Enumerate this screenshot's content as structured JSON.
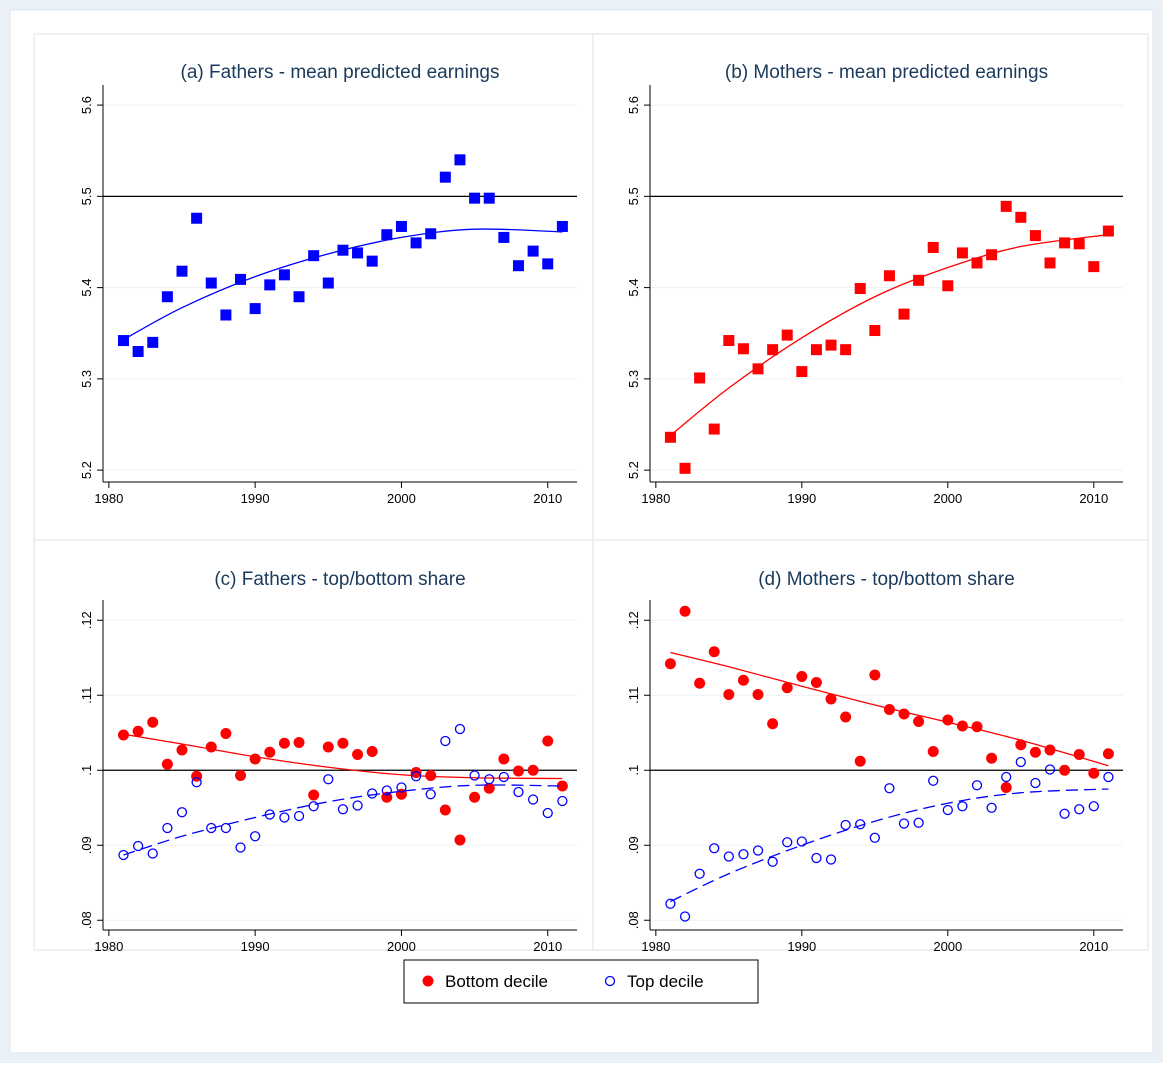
{
  "chart_data": [
    {
      "type": "scatter",
      "title": "(a) Fathers - mean predicted earnings",
      "x": [
        1981,
        1982,
        1983,
        1984,
        1985,
        1986,
        1987,
        1988,
        1989,
        1990,
        1991,
        1992,
        1993,
        1994,
        1995,
        1996,
        1997,
        1998,
        1999,
        2000,
        2001,
        2002,
        2003,
        2004,
        2005,
        2006,
        2007,
        2008,
        2009,
        2010,
        2011
      ],
      "series": [
        {
          "color": "#0000ff",
          "marker": "square",
          "values": [
            5.342,
            5.33,
            5.34,
            5.39,
            5.418,
            5.476,
            5.405,
            5.37,
            5.409,
            5.377,
            5.403,
            5.414,
            5.39,
            5.435,
            5.405,
            5.441,
            5.438,
            5.429,
            5.458,
            5.467,
            5.449,
            5.459,
            5.521,
            5.54,
            5.498,
            5.498,
            5.455,
            5.424,
            5.44,
            5.426,
            5.467
          ],
          "fit": {
            "x": [
              1981,
              1985,
              1990,
              1995,
              2000,
              2005,
              2011
            ],
            "values": [
              5.343,
              5.378,
              5.412,
              5.437,
              5.455,
              5.464,
              5.461
            ],
            "line_style": "solid"
          }
        }
      ],
      "reference_line": 5.5,
      "xlim": [
        1979.6,
        2012
      ],
      "xticks": [
        1980,
        1990,
        2000,
        2010
      ],
      "ylim": [
        5.187,
        5.622
      ],
      "yticks": [
        5.2,
        5.3,
        5.4,
        5.5,
        5.6
      ],
      "grid": true
    },
    {
      "type": "scatter",
      "title": "(b) Mothers - mean predicted earnings",
      "x": [
        1981,
        1982,
        1983,
        1984,
        1985,
        1986,
        1987,
        1988,
        1989,
        1990,
        1991,
        1992,
        1993,
        1994,
        1995,
        1996,
        1997,
        1998,
        1999,
        2000,
        2001,
        2002,
        2003,
        2004,
        2005,
        2006,
        2007,
        2008,
        2009,
        2010,
        2011
      ],
      "series": [
        {
          "color": "#ff0000",
          "marker": "square",
          "values": [
            5.236,
            5.202,
            5.301,
            5.245,
            5.342,
            5.333,
            5.311,
            5.332,
            5.348,
            5.308,
            5.332,
            5.337,
            5.332,
            5.399,
            5.353,
            5.413,
            5.371,
            5.408,
            5.444,
            5.402,
            5.438,
            5.427,
            5.436,
            5.489,
            5.477,
            5.457,
            5.427,
            5.449,
            5.448,
            5.423,
            5.462
          ],
          "fit": {
            "x": [
              1981,
              1985,
              1990,
              1995,
              2000,
              2005,
              2011
            ],
            "values": [
              5.238,
              5.29,
              5.345,
              5.39,
              5.422,
              5.445,
              5.458
            ],
            "line_style": "solid"
          }
        }
      ],
      "reference_line": 5.5,
      "xlim": [
        1979.6,
        2012
      ],
      "xticks": [
        1980,
        1990,
        2000,
        2010
      ],
      "ylim": [
        5.187,
        5.622
      ],
      "yticks": [
        5.2,
        5.3,
        5.4,
        5.5,
        5.6
      ],
      "grid": true
    },
    {
      "type": "scatter",
      "title": "(c) Fathers - top/bottom share",
      "x": [
        1981,
        1982,
        1983,
        1984,
        1985,
        1986,
        1987,
        1988,
        1989,
        1990,
        1991,
        1992,
        1993,
        1994,
        1995,
        1996,
        1997,
        1998,
        1999,
        2000,
        2001,
        2002,
        2003,
        2004,
        2005,
        2006,
        2007,
        2008,
        2009,
        2010,
        2011
      ],
      "series": [
        {
          "name": "Bottom decile",
          "color": "#ff0000",
          "marker": "circle",
          "values": [
            0.1047,
            0.1052,
            0.1064,
            0.1008,
            0.1027,
            0.0992,
            0.1031,
            0.1049,
            0.0993,
            0.1015,
            0.1024,
            0.1036,
            0.1037,
            0.0967,
            0.1031,
            0.1036,
            0.1021,
            0.1025,
            0.0964,
            0.0968,
            0.0997,
            0.0993,
            0.0947,
            0.0907,
            0.0964,
            0.0976,
            0.1015,
            0.0999,
            0.1,
            0.1039,
            0.0979
          ],
          "fit": {
            "x": [
              1981,
              1985,
              1990,
              1995,
              2000,
              2005,
              2011
            ],
            "values": [
              0.1048,
              0.1035,
              0.1018,
              0.1004,
              0.0994,
              0.099,
              0.0989
            ],
            "line_style": "solid"
          }
        },
        {
          "name": "Top decile",
          "color": "#0000ff",
          "marker": "hollow-circle",
          "values": [
            0.0887,
            0.0899,
            0.0889,
            0.0923,
            0.0944,
            0.0984,
            0.0923,
            0.0923,
            0.0897,
            0.0912,
            0.0941,
            0.0937,
            0.0939,
            0.0952,
            0.0988,
            0.0948,
            0.0953,
            0.0969,
            0.0973,
            0.0977,
            0.0992,
            0.0968,
            0.1039,
            0.1055,
            0.0993,
            0.0988,
            0.0991,
            0.0971,
            0.0961,
            0.0943,
            0.0959
          ],
          "fit": {
            "x": [
              1981,
              1985,
              1990,
              1995,
              2000,
              2005,
              2011
            ],
            "values": [
              0.0887,
              0.0912,
              0.0937,
              0.0958,
              0.0972,
              0.098,
              0.0979
            ],
            "line_style": "dashed"
          }
        }
      ],
      "reference_line": 0.1,
      "xlim": [
        1979.6,
        2012
      ],
      "xticks": [
        1980,
        1990,
        2000,
        2010
      ],
      "ylim": [
        0.0787,
        0.1227
      ],
      "yticks": [
        {
          "value": 0.08,
          "label": ".08"
        },
        {
          "value": 0.09,
          "label": ".09"
        },
        {
          "value": 0.1,
          "label": ".1"
        },
        {
          "value": 0.11,
          "label": ".11"
        },
        {
          "value": 0.12,
          "label": ".12"
        }
      ],
      "grid": true
    },
    {
      "type": "scatter",
      "title": "(d) Mothers - top/bottom share",
      "x": [
        1981,
        1982,
        1983,
        1984,
        1985,
        1986,
        1987,
        1988,
        1989,
        1990,
        1991,
        1992,
        1993,
        1994,
        1995,
        1996,
        1997,
        1998,
        1999,
        2000,
        2001,
        2002,
        2003,
        2004,
        2005,
        2006,
        2007,
        2008,
        2009,
        2010,
        2011
      ],
      "series": [
        {
          "color": "#ff0000",
          "marker": "circle",
          "values": [
            0.1142,
            0.1212,
            0.1116,
            0.1158,
            0.1101,
            0.112,
            0.1101,
            0.1062,
            0.111,
            0.1125,
            0.1117,
            0.1095,
            0.1071,
            0.1012,
            0.1127,
            0.1081,
            0.1075,
            0.1065,
            0.1025,
            0.1067,
            0.1059,
            0.1058,
            0.1016,
            0.0977,
            0.1034,
            0.1024,
            0.1027,
            0.1,
            0.1021,
            0.0996,
            0.1022
          ],
          "fit": {
            "x": [
              1981,
              1985,
              1990,
              1995,
              2000,
              2005,
              2011
            ],
            "values": [
              0.1157,
              0.1138,
              0.1112,
              0.1087,
              0.1064,
              0.104,
              0.1006
            ],
            "line_style": "solid"
          }
        },
        {
          "color": "#0000ff",
          "marker": "hollow-circle",
          "values": [
            0.0822,
            0.0805,
            0.0862,
            0.0896,
            0.0885,
            0.0888,
            0.0893,
            0.0878,
            0.0904,
            0.0905,
            0.0883,
            0.0881,
            0.0927,
            0.0928,
            0.091,
            0.0976,
            0.0929,
            0.093,
            0.0986,
            0.0947,
            0.0952,
            0.098,
            0.095,
            0.0991,
            0.1011,
            0.0983,
            0.1001,
            0.0942,
            0.0948,
            0.0952,
            0.0991
          ],
          "fit": {
            "x": [
              1981,
              1985,
              1990,
              1995,
              2000,
              2005,
              2011
            ],
            "values": [
              0.0825,
              0.0862,
              0.09,
              0.0932,
              0.0956,
              0.097,
              0.0975
            ],
            "line_style": "dashed"
          }
        }
      ],
      "reference_line": 0.1,
      "xlim": [
        1979.6,
        2012
      ],
      "xticks": [
        1980,
        1990,
        2000,
        2010
      ],
      "ylim": [
        0.0787,
        0.1227
      ],
      "yticks": [
        {
          "value": 0.08,
          "label": ".08"
        },
        {
          "value": 0.09,
          "label": ".09"
        },
        {
          "value": 0.1,
          "label": ".1"
        },
        {
          "value": 0.11,
          "label": ".11"
        },
        {
          "value": 0.12,
          "label": ".12"
        }
      ],
      "grid": true
    }
  ]
}
